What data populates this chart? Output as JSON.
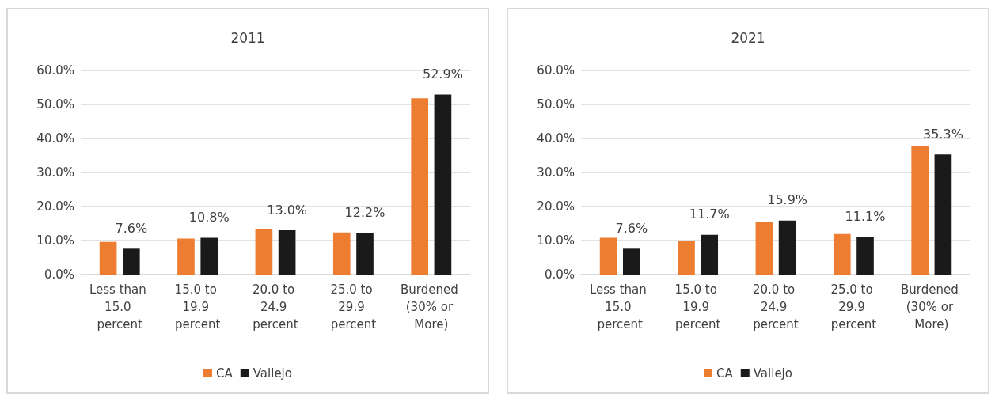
{
  "chart_data": [
    {
      "type": "bar",
      "title": "2011",
      "categories": [
        "Less than 15.0 percent",
        "15.0 to 19.9 percent",
        "20.0 to 24.9 percent",
        "25.0 to 29.9 percent",
        "Burdened (30% or More)"
      ],
      "series": [
        {
          "name": "CA",
          "color": "#ed7d31",
          "values": [
            9.6,
            10.6,
            13.3,
            12.4,
            51.8
          ]
        },
        {
          "name": "Vallejo",
          "color": "#1a1a1a",
          "values": [
            7.6,
            10.8,
            13.0,
            12.2,
            52.9
          ],
          "value_labels": [
            "7.6%",
            "10.8%",
            "13.0%",
            "12.2%",
            "52.9%"
          ]
        }
      ],
      "ylim": [
        0,
        60
      ],
      "yticks": [
        {
          "value": 0,
          "label": "0.0%"
        },
        {
          "value": 10,
          "label": "10.0%"
        },
        {
          "value": 20,
          "label": "20.0%"
        },
        {
          "value": 30,
          "label": "30.0%"
        },
        {
          "value": 40,
          "label": "40.0%"
        },
        {
          "value": 50,
          "label": "50.0%"
        },
        {
          "value": 60,
          "label": "60.0%"
        }
      ],
      "grid": "y",
      "legend": "bottom"
    },
    {
      "type": "bar",
      "title": "2021",
      "categories": [
        "Less than 15.0 percent",
        "15.0 to 19.9 percent",
        "20.0 to 24.9 percent",
        "25.0 to 29.9 percent",
        "Burdened (30% or More)"
      ],
      "series": [
        {
          "name": "CA",
          "color": "#ed7d31",
          "values": [
            10.8,
            10.0,
            15.4,
            11.9,
            37.7
          ]
        },
        {
          "name": "Vallejo",
          "color": "#1a1a1a",
          "values": [
            7.6,
            11.7,
            15.9,
            11.1,
            35.3
          ],
          "value_labels": [
            "7.6%",
            "11.7%",
            "15.9%",
            "11.1%",
            "35.3%"
          ]
        }
      ],
      "ylim": [
        0,
        60
      ],
      "yticks": [
        {
          "value": 0,
          "label": "0.0%"
        },
        {
          "value": 10,
          "label": "10.0%"
        },
        {
          "value": 20,
          "label": "20.0%"
        },
        {
          "value": 30,
          "label": "30.0%"
        },
        {
          "value": 40,
          "label": "40.0%"
        },
        {
          "value": 50,
          "label": "50.0%"
        },
        {
          "value": 60,
          "label": "60.0%"
        }
      ],
      "grid": "y",
      "legend": "bottom"
    }
  ]
}
